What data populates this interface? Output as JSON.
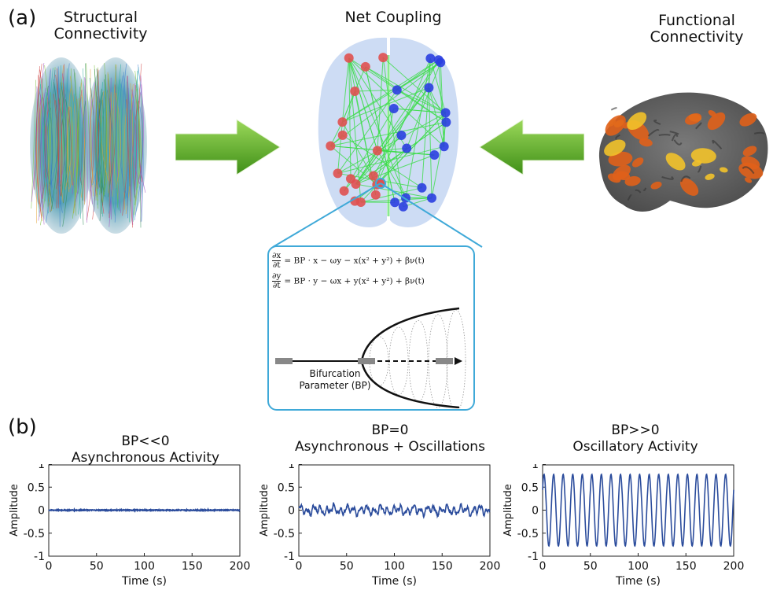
{
  "panel_a": {
    "label": "(a)",
    "structural": {
      "line1": "Structural",
      "line2": "Connectivity"
    },
    "net": {
      "title": "Net Coupling"
    },
    "functional": {
      "line1": "Functional",
      "line2": "Connectivity"
    },
    "inset": {
      "eq1": {
        "num": "∂x",
        "den": "∂t",
        "rhs": "= BP · x − ωy − x(x² + y²) + βν(t)"
      },
      "eq2": {
        "num": "∂y",
        "den": "∂t",
        "rhs": "= BP · y − ωx + y(x² + y²) + βν(t)"
      },
      "bp_line1": "Bifurcation",
      "bp_line2": "Parameter (BP)"
    },
    "colors": {
      "arrow": "#5fae1e",
      "inset_border": "#3fa9d8",
      "hemisphere_left_nodes": "#e05050",
      "hemisphere_right_nodes": "#2a3ee0",
      "edges": "#3ddc4a"
    }
  },
  "panel_b": {
    "label": "(b)",
    "chart_data": [
      {
        "type": "line",
        "title_line1": "BP<<0",
        "title_line2": "Asynchronous Activity",
        "xlabel": "Time (s)",
        "ylabel": "Amplitude",
        "xlim": [
          0,
          200
        ],
        "ylim": [
          -1,
          1
        ],
        "xticks": [
          "0",
          "50",
          "100",
          "150",
          "200"
        ],
        "yticks": [
          "1",
          "0.5",
          "0",
          "-0.5",
          "-1"
        ],
        "series": [
          {
            "pattern": "near-zero noise",
            "amplitude": 0.02,
            "color": "#2b4c9c"
          }
        ]
      },
      {
        "type": "line",
        "title_line1": "BP=0",
        "title_line2": "Asynchronous + Oscillations",
        "xlabel": "Time (s)",
        "ylabel": "Amplitude",
        "xlim": [
          0,
          200
        ],
        "ylim": [
          -1,
          1
        ],
        "xticks": [
          "0",
          "50",
          "100",
          "150",
          "200"
        ],
        "yticks": [
          "1",
          "0.5",
          "0",
          "-0.5",
          "-1"
        ],
        "series": [
          {
            "pattern": "irregular fluctuations",
            "amplitude": 0.12,
            "color": "#2b4c9c"
          }
        ]
      },
      {
        "type": "line",
        "title_line1": "BP>>0",
        "title_line2": "Oscillatory Activity",
        "xlabel": "Time (s)",
        "ylabel": "Amplitude",
        "xlim": [
          0,
          200
        ],
        "ylim": [
          -1,
          1
        ],
        "xticks": [
          "0",
          "50",
          "100",
          "150",
          "200"
        ],
        "yticks": [
          "1",
          "0.5",
          "0",
          "-0.5",
          "-1"
        ],
        "series": [
          {
            "pattern": "sinusoid",
            "amplitude": 0.78,
            "cycles": 20,
            "color": "#2b4c9c"
          }
        ]
      }
    ]
  }
}
